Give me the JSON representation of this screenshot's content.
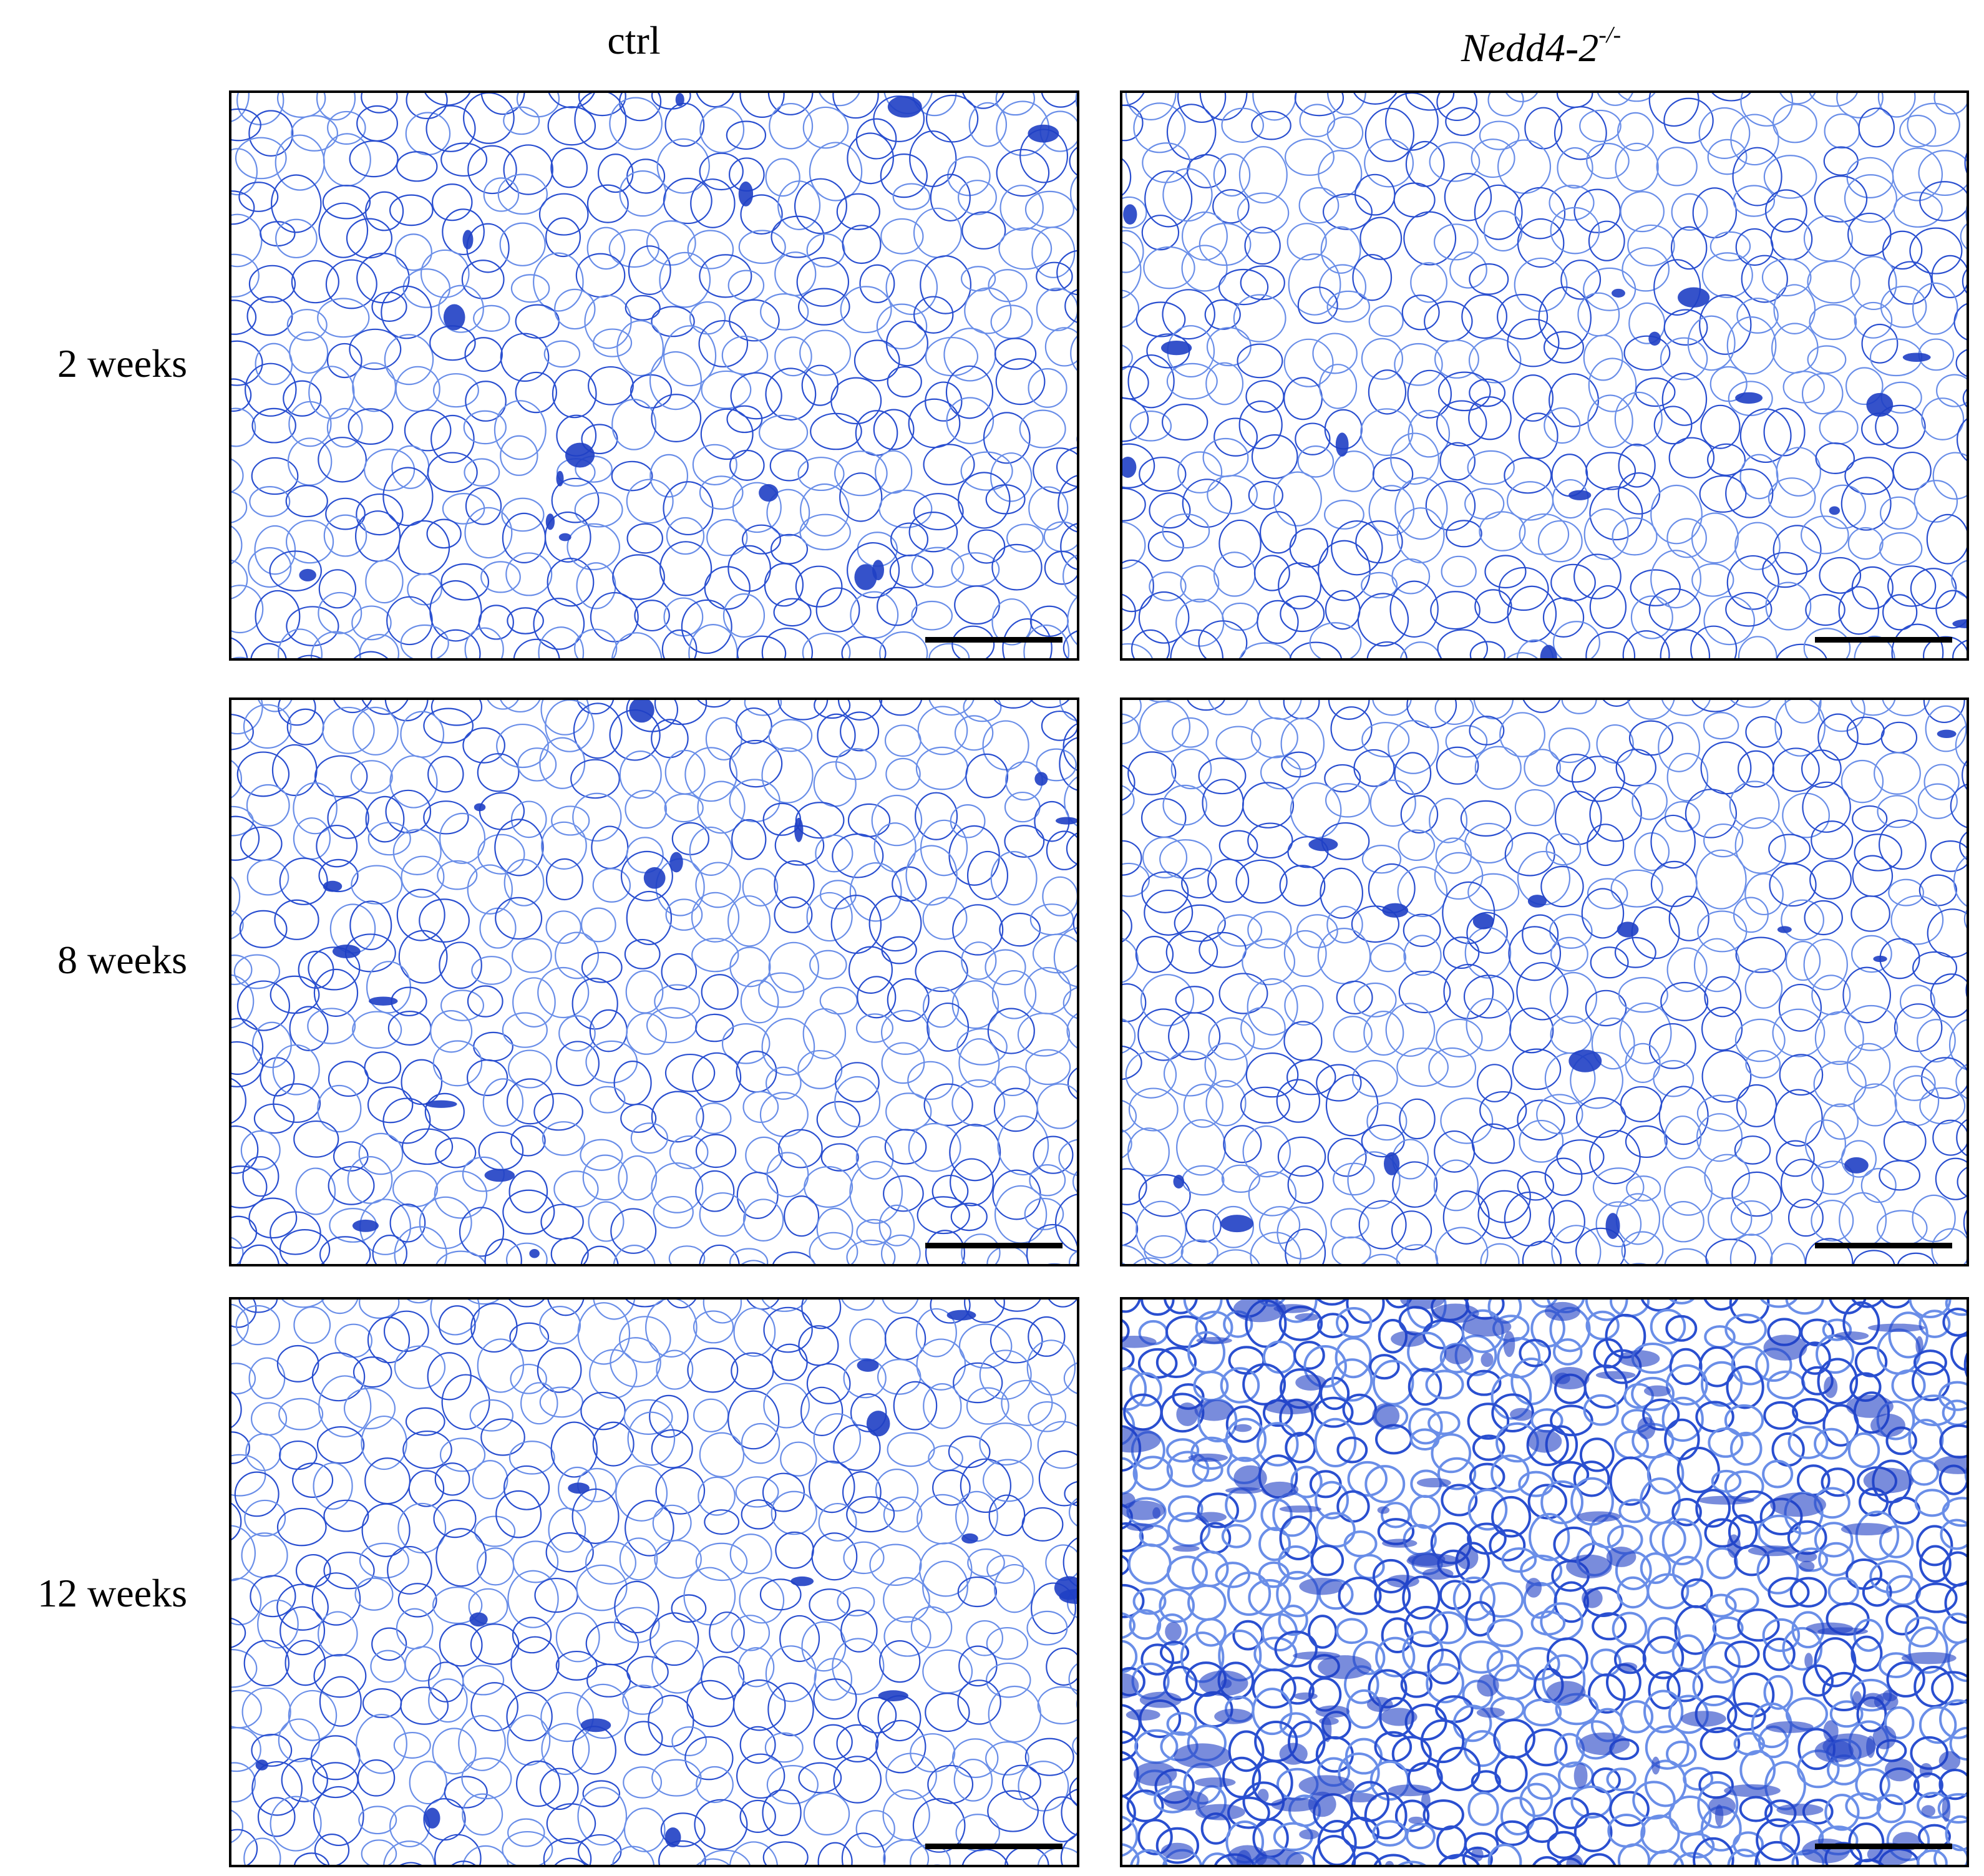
{
  "column_headers": [
    "ctrl",
    {
      "text": "Nedd4-2",
      "superscript": "-/-"
    }
  ],
  "row_labels": [
    "2 weeks",
    "8 weeks",
    "12 weeks"
  ]
}
